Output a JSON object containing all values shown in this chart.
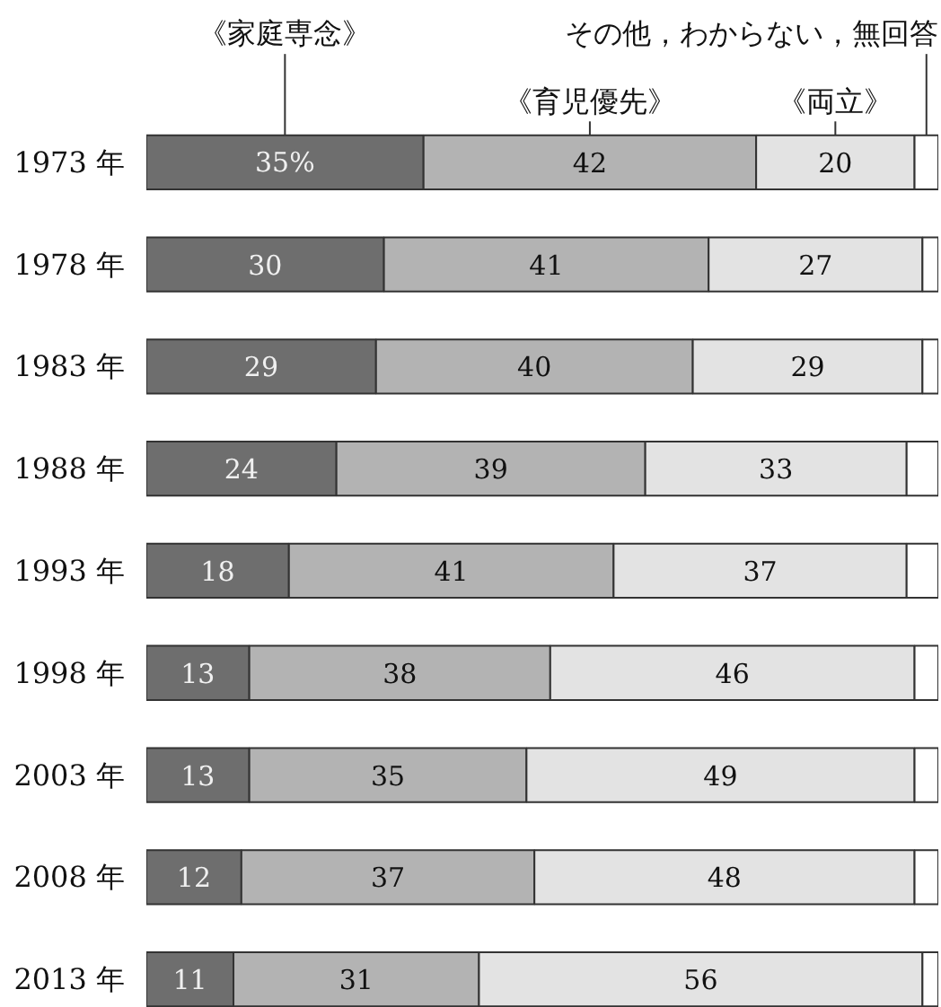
{
  "chart_data": {
    "type": "bar",
    "orientation": "horizontal",
    "stacked": true,
    "categories": [
      "1973 年",
      "1978 年",
      "1983 年",
      "1988 年",
      "1993 年",
      "1998 年",
      "2003 年",
      "2008 年",
      "2013 年"
    ],
    "series": [
      {
        "name": "《家庭専念》",
        "color": "#6e6e6e",
        "values": [
          35,
          30,
          29,
          24,
          18,
          13,
          13,
          12,
          11
        ],
        "value_labels": [
          "35%",
          "30",
          "29",
          "24",
          "18",
          "13",
          "13",
          "12",
          "11"
        ]
      },
      {
        "name": "《育児優先》",
        "color": "#b3b3b3",
        "values": [
          42,
          41,
          40,
          39,
          41,
          38,
          35,
          37,
          31
        ],
        "value_labels": [
          "42",
          "41",
          "40",
          "39",
          "41",
          "38",
          "35",
          "37",
          "31"
        ]
      },
      {
        "name": "《両立》",
        "color": "#e3e3e3",
        "values": [
          20,
          27,
          29,
          33,
          37,
          46,
          49,
          48,
          56
        ],
        "value_labels": [
          "20",
          "27",
          "29",
          "33",
          "37",
          "46",
          "49",
          "48",
          "56"
        ]
      },
      {
        "name": "その他，わからない，無回答",
        "color": "#ffffff",
        "values": [
          3,
          2,
          2,
          4,
          4,
          3,
          3,
          3,
          2
        ]
      }
    ]
  }
}
